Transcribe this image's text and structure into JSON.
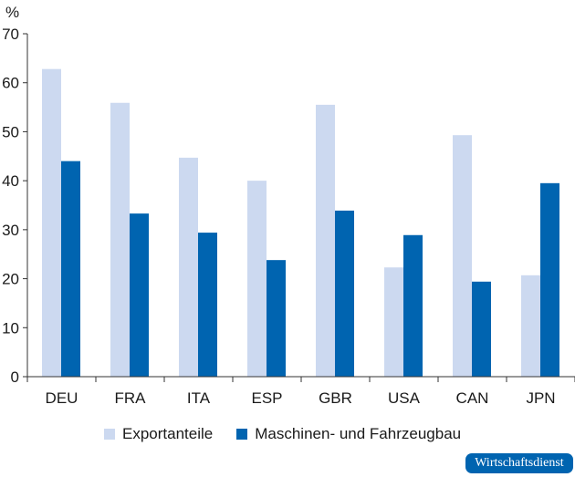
{
  "chart_data": {
    "type": "bar",
    "ylabel": "%",
    "ylim": [
      0,
      70
    ],
    "yticks": [
      0,
      10,
      20,
      30,
      40,
      50,
      60,
      70
    ],
    "grid": false,
    "legend_position": "bottom",
    "categories": [
      "DEU",
      "FRA",
      "ITA",
      "ESP",
      "GBR",
      "USA",
      "CAN",
      "JPN"
    ],
    "series": [
      {
        "name": "Exportanteile",
        "color": "#ccd9f0",
        "values": [
          62.8,
          55.9,
          44.7,
          40.0,
          55.5,
          22.3,
          49.3,
          20.7
        ]
      },
      {
        "name": "Maschinen- und Fahrzeugbau",
        "color": "#0064b0",
        "values": [
          44.0,
          33.3,
          29.4,
          23.8,
          33.9,
          28.9,
          19.4,
          39.5
        ]
      }
    ]
  },
  "badge": "Wirtschaftsdienst"
}
